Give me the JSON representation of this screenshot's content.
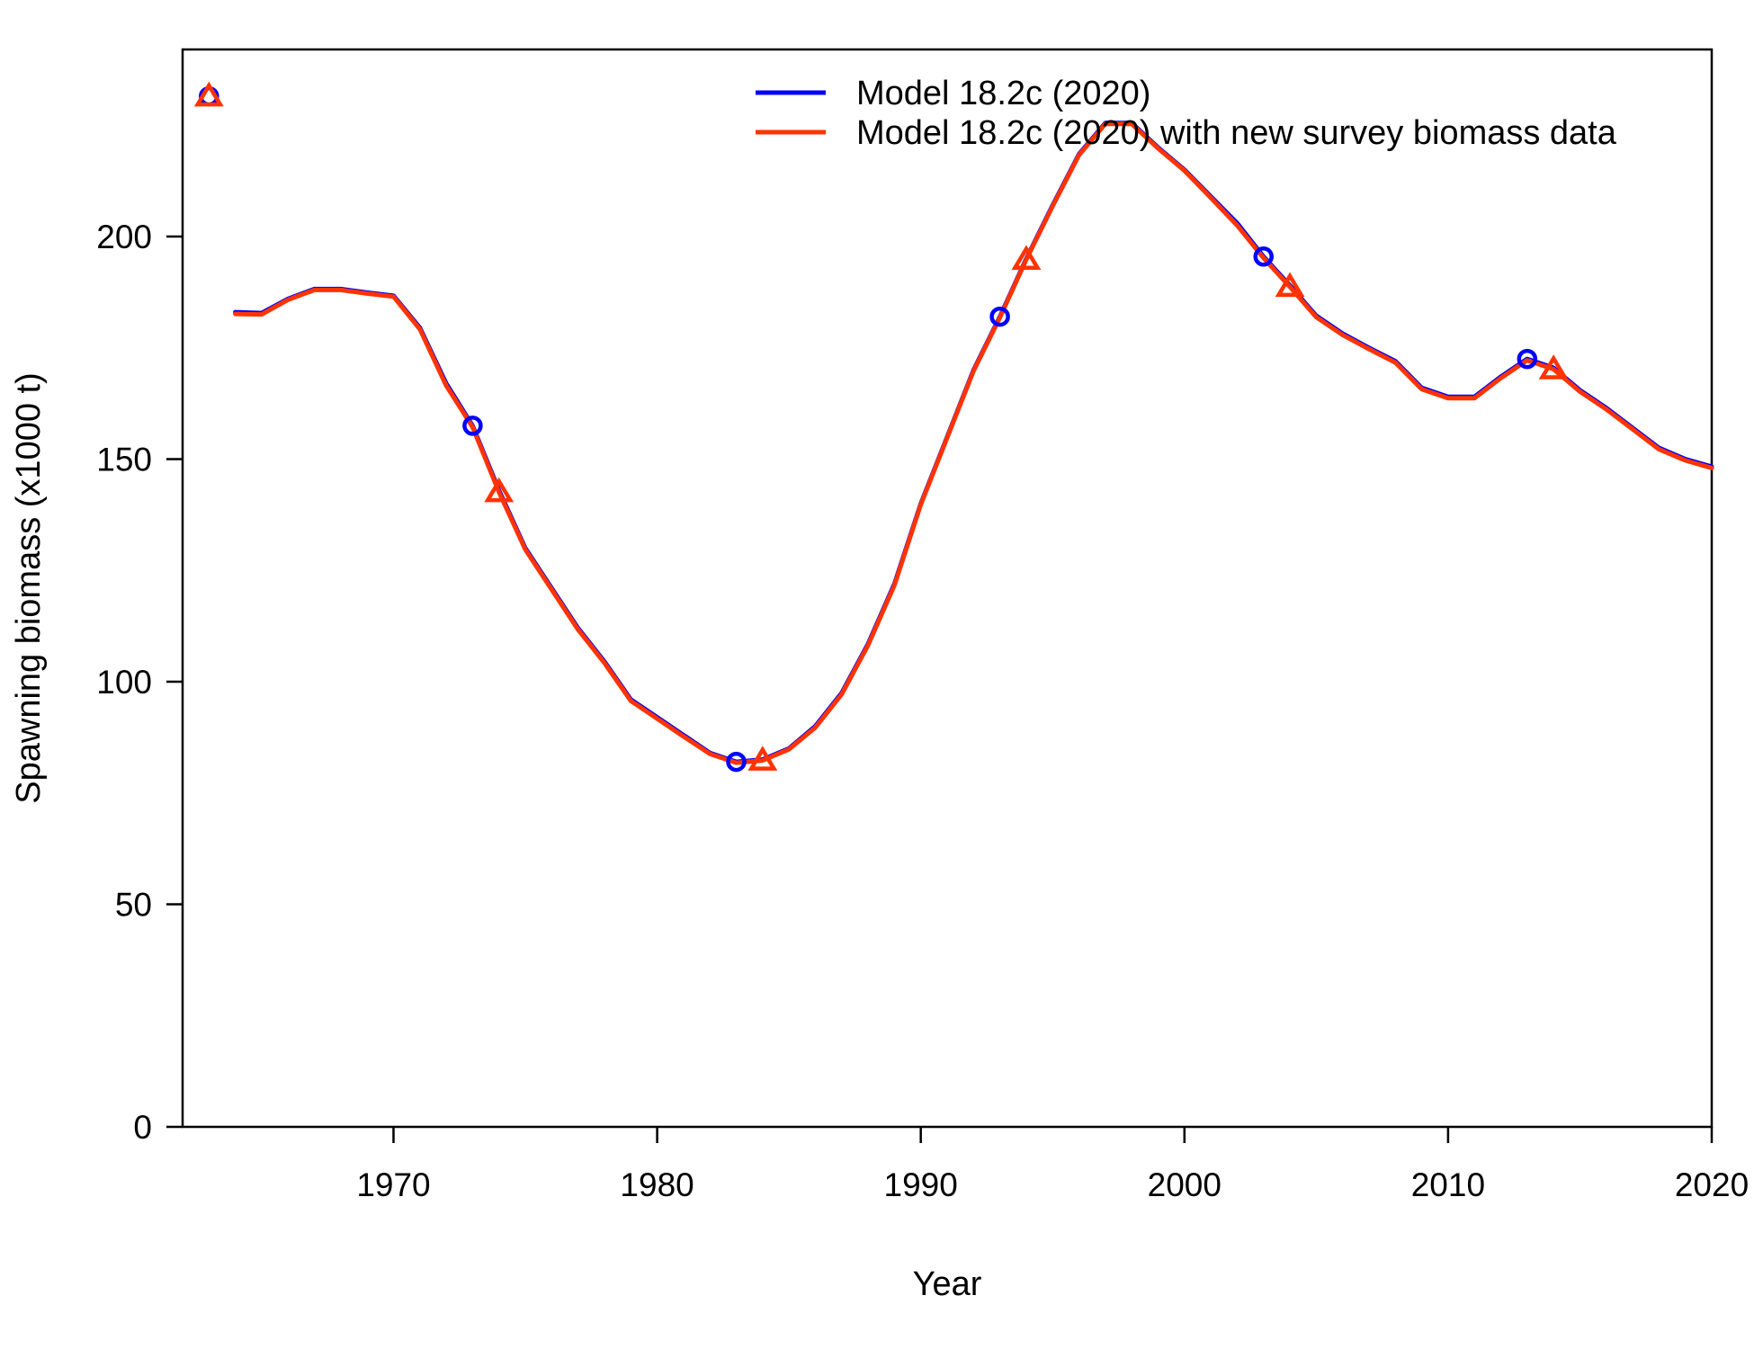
{
  "chart_data": {
    "type": "line",
    "xlabel": "Year",
    "ylabel": "Spawning biomass (x1000 t)",
    "xlim": [
      1962,
      2020
    ],
    "ylim": [
      0,
      242
    ],
    "x_ticks": [
      1970,
      1980,
      1990,
      2000,
      2010,
      2020
    ],
    "y_ticks": [
      0,
      50,
      100,
      150,
      200
    ],
    "grid": false,
    "legend_position": "top-right",
    "series": [
      {
        "name": "Model 18.2c (2020)",
        "color": "#0000ff",
        "marker": "circle",
        "marker_every": 10,
        "marker_offset": 0,
        "x": [
          1963,
          1964,
          1965,
          1966,
          1967,
          1968,
          1969,
          1970,
          1971,
          1972,
          1973,
          1974,
          1975,
          1976,
          1977,
          1978,
          1979,
          1980,
          1981,
          1982,
          1983,
          1984,
          1985,
          1986,
          1987,
          1988,
          1989,
          1990,
          1991,
          1992,
          1993,
          1994,
          1995,
          1996,
          1997,
          1998,
          1999,
          2000,
          2001,
          2002,
          2003,
          2004,
          2005,
          2006,
          2007,
          2008,
          2009,
          2010,
          2011,
          2012,
          2013,
          2014,
          2015,
          2016,
          2017,
          2018,
          2019,
          2020
        ],
        "values": [
          231.5,
          183,
          182.8,
          186,
          188.2,
          188.2,
          187.4,
          186.7,
          179.5,
          167,
          157.5,
          143,
          130,
          121,
          112,
          104.5,
          96,
          92,
          88,
          84,
          82,
          82.5,
          85,
          90,
          97.5,
          108.5,
          122,
          140,
          155,
          170,
          182,
          195,
          207,
          218.5,
          225.5,
          225.5,
          220,
          215,
          209,
          203,
          195.5,
          189,
          182.2,
          178.2,
          175,
          172,
          166,
          164,
          164,
          168.5,
          172.5,
          170.5,
          165.5,
          161.5,
          157,
          152.5,
          150,
          148.3
        ]
      },
      {
        "name": "Model 18.2c (2020) with new survey biomass data",
        "color": "#ff3300",
        "marker": "triangle",
        "marker_every": 10,
        "marker_offset": 0,
        "x": [
          1963,
          1964,
          1965,
          1966,
          1967,
          1968,
          1969,
          1970,
          1971,
          1972,
          1973,
          1974,
          1975,
          1976,
          1977,
          1978,
          1979,
          1980,
          1981,
          1982,
          1983,
          1984,
          1985,
          1986,
          1987,
          1988,
          1989,
          1990,
          1991,
          1992,
          1993,
          1994,
          1995,
          1996,
          1997,
          1998,
          1999,
          2000,
          2001,
          2002,
          2003,
          2004,
          2005,
          2006,
          2007,
          2008,
          2009,
          2010,
          2011,
          2012,
          2013,
          2014,
          2015,
          2016,
          2017,
          2018,
          2019,
          2020
        ],
        "values": [
          231.5,
          182.6,
          182.5,
          185.8,
          188,
          188,
          187.2,
          186.5,
          179.2,
          166.5,
          157.2,
          142.6,
          129.7,
          120.7,
          111.7,
          104.2,
          95.7,
          91.7,
          87.7,
          83.8,
          81.8,
          82.3,
          84.8,
          89.7,
          97.2,
          108.2,
          121.7,
          139.8,
          154.8,
          169.8,
          181.8,
          194.8,
          206.8,
          218.3,
          225.3,
          225.3,
          219.8,
          214.8,
          208.7,
          202.5,
          195.2,
          188.7,
          181.9,
          177.9,
          174.7,
          171.7,
          165.7,
          163.7,
          163.7,
          168.2,
          172.2,
          170.2,
          165.2,
          161.2,
          156.7,
          152.2,
          149.7,
          148
        ]
      }
    ]
  }
}
